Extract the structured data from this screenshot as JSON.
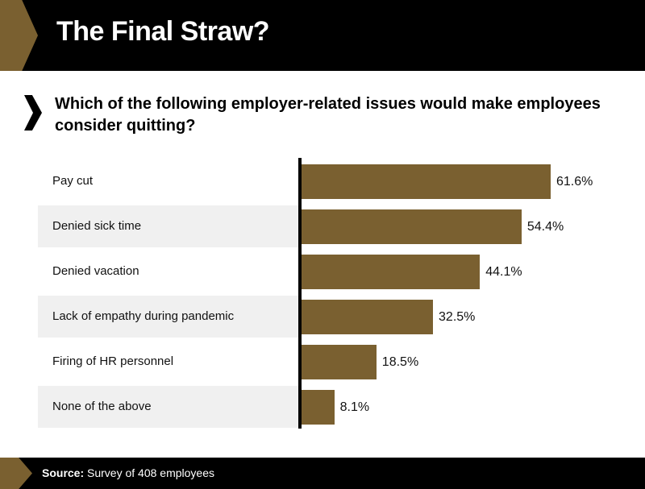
{
  "header": {
    "title": "The Final Straw?"
  },
  "question": "Which of the following employer-related issues would make employees consider quitting?",
  "colors": {
    "accent": "#7a6030",
    "bar": "#7a6030",
    "band_alt": "#f0f0f0",
    "header_bg": "#000000"
  },
  "chart_data": {
    "type": "bar",
    "orientation": "horizontal",
    "title": "",
    "categories": [
      "Pay cut",
      "Denied sick time",
      "Denied vacation",
      "Lack of empathy during pandemic",
      "Firing of HR personnel",
      "None of the above"
    ],
    "values": [
      61.6,
      54.4,
      44.1,
      32.5,
      18.5,
      8.1
    ],
    "value_labels": [
      "61.6%",
      "54.4%",
      "44.1%",
      "32.5%",
      "18.5%",
      "8.1%"
    ],
    "unit": "%",
    "xlim": [
      0,
      70
    ],
    "grid": false,
    "legend": "none"
  },
  "footer": {
    "source_label": "Source:",
    "source_text": "Survey of 408 employees"
  }
}
